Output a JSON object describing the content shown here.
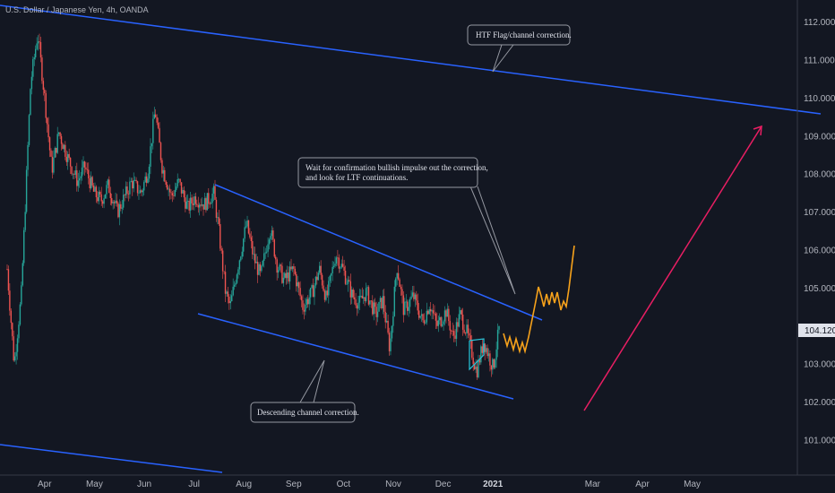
{
  "chart_data": {
    "type": "candlestick",
    "title": "U.S. Dollar / Japanese Yen, 4h, OANDA",
    "y_ticks": [
      "112.000",
      "111.000",
      "110.000",
      "109.000",
      "108.000",
      "107.000",
      "106.000",
      "105.000",
      "103.000",
      "102.000",
      "101.000"
    ],
    "x_ticks": [
      {
        "label": "Apr",
        "bold": false
      },
      {
        "label": "May",
        "bold": false
      },
      {
        "label": "Jun",
        "bold": false
      },
      {
        "label": "Jul",
        "bold": false
      },
      {
        "label": "Aug",
        "bold": false
      },
      {
        "label": "Sep",
        "bold": false
      },
      {
        "label": "Oct",
        "bold": false
      },
      {
        "label": "Nov",
        "bold": false
      },
      {
        "label": "Dec",
        "bold": false
      },
      {
        "label": "2021",
        "bold": true
      },
      {
        "label": "Mar",
        "bold": false
      },
      {
        "label": "Apr",
        "bold": false
      },
      {
        "label": "May",
        "bold": false
      }
    ],
    "ylim": [
      100.6,
      112.25
    ],
    "last_price": "104.120",
    "price_path": [
      [
        0.0,
        105.5
      ],
      [
        0.3,
        103.0
      ],
      [
        0.6,
        104.8
      ],
      [
        1.0,
        110.4
      ],
      [
        1.3,
        111.7
      ],
      [
        1.6,
        110.0
      ],
      [
        1.9,
        108.1
      ],
      [
        2.2,
        109.1
      ],
      [
        2.6,
        108.4
      ],
      [
        3.0,
        107.8
      ],
      [
        3.3,
        108.2
      ],
      [
        3.7,
        107.5
      ],
      [
        4.0,
        107.3
      ],
      [
        4.3,
        107.7
      ],
      [
        4.7,
        107.0
      ],
      [
        5.0,
        107.4
      ],
      [
        5.3,
        107.8
      ],
      [
        5.7,
        107.5
      ],
      [
        6.0,
        108.1
      ],
      [
        6.3,
        109.7
      ],
      [
        6.6,
        108.2
      ],
      [
        7.0,
        107.4
      ],
      [
        7.3,
        107.8
      ],
      [
        7.7,
        107.1
      ],
      [
        8.0,
        107.4
      ],
      [
        8.4,
        107.2
      ],
      [
        8.8,
        107.5
      ],
      [
        9.0,
        106.6
      ],
      [
        9.3,
        104.9
      ],
      [
        9.5,
        104.5
      ],
      [
        9.8,
        105.5
      ],
      [
        10.2,
        106.7
      ],
      [
        10.5,
        105.8
      ],
      [
        10.8,
        105.3
      ],
      [
        11.2,
        106.6
      ],
      [
        11.5,
        105.6
      ],
      [
        11.8,
        105.2
      ],
      [
        12.2,
        105.5
      ],
      [
        12.6,
        104.5
      ],
      [
        13.0,
        104.9
      ],
      [
        13.3,
        105.5
      ],
      [
        13.6,
        104.7
      ],
      [
        14.0,
        105.9
      ],
      [
        14.3,
        105.5
      ],
      [
        14.7,
        104.8
      ],
      [
        15.0,
        104.6
      ],
      [
        15.3,
        104.9
      ],
      [
        15.7,
        104.3
      ],
      [
        16.0,
        104.7
      ],
      [
        16.3,
        103.4
      ],
      [
        16.6,
        105.6
      ],
      [
        16.9,
        104.4
      ],
      [
        17.3,
        104.8
      ],
      [
        17.7,
        104.1
      ],
      [
        18.0,
        104.6
      ],
      [
        18.3,
        104.0
      ],
      [
        18.7,
        104.4
      ],
      [
        19.0,
        103.7
      ],
      [
        19.3,
        104.3
      ],
      [
        19.6,
        103.8
      ],
      [
        20.0,
        102.8
      ],
      [
        20.3,
        103.6
      ],
      [
        20.7,
        102.9
      ],
      [
        21.0,
        104.1
      ]
    ],
    "annotations": [
      {
        "text": "HTF Flag/channel correction."
      },
      {
        "text": "Wait for confirmation bullish impulse out the correction,"
      },
      {
        "text": "and look for LTF continuations."
      },
      {
        "text": "Descending channel correction."
      }
    ],
    "colors": {
      "background": "#131722",
      "up": "#26a69a",
      "down": "#ef5350",
      "trendline": "#2962ff",
      "projection": "#f7a21b",
      "target_arrow": "#e91e63",
      "price_tag": "#e0e3eb"
    }
  }
}
